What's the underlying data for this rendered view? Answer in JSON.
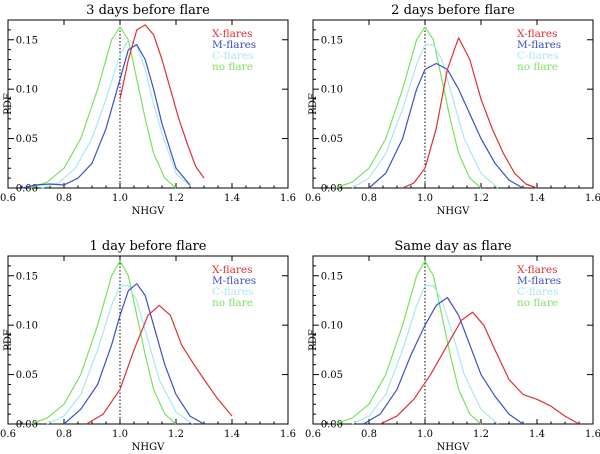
{
  "colors": {
    "X-flares": "#e03030",
    "M-flares": "#3a50c8",
    "C-flares": "#a8e8ef",
    "no flare": "#7ce060"
  },
  "chart_data": [
    {
      "type": "line",
      "title": "3 days before flare",
      "xlabel": "NHGV",
      "ylabel": "PDF",
      "xlim": [
        0.6,
        1.6
      ],
      "ylim": [
        0,
        0.17
      ],
      "xticks": [
        "0.6",
        "0.8",
        "1.0",
        "1.2",
        "1.4",
        "1.6"
      ],
      "yticks": [
        "0.00",
        "0.05",
        "0.10",
        "0.15"
      ],
      "vline": 1.0,
      "legend": [
        "X-flares",
        "M-flares",
        "C-flares",
        "no flare"
      ],
      "series": [
        {
          "name": "X-flares",
          "x": [
            1.0,
            1.03,
            1.06,
            1.09,
            1.12,
            1.15,
            1.18,
            1.21,
            1.24,
            1.27,
            1.3
          ],
          "y": [
            0.09,
            0.13,
            0.16,
            0.165,
            0.155,
            0.13,
            0.1,
            0.07,
            0.045,
            0.022,
            0.01
          ]
        },
        {
          "name": "M-flares",
          "x": [
            0.65,
            0.7,
            0.75,
            0.8,
            0.85,
            0.9,
            0.95,
            1.0,
            1.03,
            1.06,
            1.09,
            1.12,
            1.15,
            1.2,
            1.25
          ],
          "y": [
            0.0,
            0.003,
            0.004,
            0.003,
            0.01,
            0.025,
            0.06,
            0.11,
            0.14,
            0.145,
            0.13,
            0.1,
            0.065,
            0.02,
            0.003
          ]
        },
        {
          "name": "C-flares",
          "x": [
            0.72,
            0.78,
            0.84,
            0.9,
            0.95,
            1.0,
            1.03,
            1.06,
            1.09,
            1.12,
            1.15,
            1.2,
            1.25
          ],
          "y": [
            0.0,
            0.005,
            0.02,
            0.05,
            0.09,
            0.135,
            0.15,
            0.145,
            0.12,
            0.085,
            0.055,
            0.015,
            0.002
          ]
        },
        {
          "name": "no flare",
          "x": [
            0.68,
            0.74,
            0.8,
            0.86,
            0.92,
            0.97,
            1.0,
            1.03,
            1.06,
            1.09,
            1.12,
            1.16,
            1.2
          ],
          "y": [
            0.0,
            0.006,
            0.02,
            0.05,
            0.1,
            0.15,
            0.163,
            0.15,
            0.11,
            0.07,
            0.035,
            0.01,
            0.0
          ]
        }
      ]
    },
    {
      "type": "line",
      "title": "2 days before flare",
      "xlabel": "NHGV",
      "ylabel": "PDF",
      "xlim": [
        0.6,
        1.6
      ],
      "ylim": [
        0,
        0.17
      ],
      "xticks": [
        "0.6",
        "0.8",
        "1.0",
        "1.2",
        "1.4",
        "1.6"
      ],
      "yticks": [
        "0.00",
        "0.05",
        "0.10",
        "0.15"
      ],
      "vline": 1.0,
      "legend": [
        "X-flares",
        "M-flares",
        "C-flares",
        "no flare"
      ],
      "series": [
        {
          "name": "X-flares",
          "x": [
            0.92,
            0.96,
            1.0,
            1.04,
            1.08,
            1.12,
            1.16,
            1.2,
            1.24,
            1.28,
            1.32,
            1.36,
            1.4
          ],
          "y": [
            0.0,
            0.005,
            0.02,
            0.06,
            0.12,
            0.152,
            0.13,
            0.09,
            0.06,
            0.035,
            0.015,
            0.004,
            0.0
          ]
        },
        {
          "name": "M-flares",
          "x": [
            0.8,
            0.86,
            0.92,
            0.97,
            1.0,
            1.04,
            1.08,
            1.12,
            1.16,
            1.2,
            1.25,
            1.3,
            1.35
          ],
          "y": [
            0.0,
            0.015,
            0.05,
            0.1,
            0.12,
            0.126,
            0.12,
            0.1,
            0.075,
            0.05,
            0.025,
            0.008,
            0.0
          ]
        },
        {
          "name": "C-flares",
          "x": [
            0.74,
            0.8,
            0.86,
            0.92,
            0.97,
            1.0,
            1.03,
            1.06,
            1.1,
            1.14,
            1.2,
            1.26
          ],
          "y": [
            0.0,
            0.01,
            0.035,
            0.08,
            0.125,
            0.145,
            0.145,
            0.13,
            0.09,
            0.05,
            0.015,
            0.0
          ]
        },
        {
          "name": "no flare",
          "x": [
            0.68,
            0.74,
            0.8,
            0.86,
            0.92,
            0.97,
            1.0,
            1.03,
            1.06,
            1.09,
            1.12,
            1.16,
            1.2
          ],
          "y": [
            0.0,
            0.006,
            0.02,
            0.05,
            0.1,
            0.15,
            0.163,
            0.15,
            0.11,
            0.07,
            0.035,
            0.01,
            0.0
          ]
        }
      ]
    },
    {
      "type": "line",
      "title": "1 day before flare",
      "xlabel": "NHGV",
      "ylabel": "PDF",
      "xlim": [
        0.6,
        1.6
      ],
      "ylim": [
        0,
        0.17
      ],
      "xticks": [
        "0.6",
        "0.8",
        "1.0",
        "1.2",
        "1.4",
        "1.6"
      ],
      "yticks": [
        "0.00",
        "0.05",
        "0.10",
        "0.15"
      ],
      "vline": 1.0,
      "legend": [
        "X-flares",
        "M-flares",
        "C-flares",
        "no flare"
      ],
      "series": [
        {
          "name": "X-flares",
          "x": [
            0.88,
            0.94,
            1.0,
            1.05,
            1.1,
            1.14,
            1.18,
            1.22,
            1.26,
            1.3,
            1.35,
            1.4
          ],
          "y": [
            0.0,
            0.01,
            0.035,
            0.075,
            0.11,
            0.12,
            0.11,
            0.08,
            0.062,
            0.045,
            0.025,
            0.008
          ]
        },
        {
          "name": "M-flares",
          "x": [
            0.8,
            0.86,
            0.92,
            0.97,
            1.0,
            1.03,
            1.06,
            1.09,
            1.12,
            1.16,
            1.2,
            1.25,
            1.3
          ],
          "y": [
            0.0,
            0.015,
            0.04,
            0.08,
            0.11,
            0.135,
            0.142,
            0.13,
            0.1,
            0.06,
            0.03,
            0.008,
            0.0
          ]
        },
        {
          "name": "C-flares",
          "x": [
            0.74,
            0.8,
            0.86,
            0.92,
            0.97,
            1.0,
            1.03,
            1.06,
            1.1,
            1.14,
            1.2,
            1.26
          ],
          "y": [
            0.0,
            0.008,
            0.03,
            0.075,
            0.12,
            0.14,
            0.14,
            0.125,
            0.085,
            0.045,
            0.012,
            0.0
          ]
        },
        {
          "name": "no flare",
          "x": [
            0.68,
            0.74,
            0.8,
            0.86,
            0.92,
            0.97,
            1.0,
            1.03,
            1.06,
            1.09,
            1.12,
            1.16,
            1.2
          ],
          "y": [
            0.0,
            0.006,
            0.02,
            0.05,
            0.1,
            0.15,
            0.165,
            0.15,
            0.11,
            0.07,
            0.035,
            0.01,
            0.0
          ]
        }
      ]
    },
    {
      "type": "line",
      "title": "Same day as flare",
      "xlabel": "NHGV",
      "ylabel": "PDF",
      "xlim": [
        0.6,
        1.6
      ],
      "ylim": [
        0,
        0.17
      ],
      "xticks": [
        "0.6",
        "0.8",
        "1.0",
        "1.2",
        "1.4",
        "1.6"
      ],
      "yticks": [
        "0.00",
        "0.05",
        "0.10",
        "0.15"
      ],
      "vline": 1.0,
      "legend": [
        "X-flares",
        "M-flares",
        "C-flares",
        "no flare"
      ],
      "series": [
        {
          "name": "X-flares",
          "x": [
            0.84,
            0.9,
            0.96,
            1.02,
            1.08,
            1.13,
            1.17,
            1.21,
            1.25,
            1.3,
            1.35,
            1.4,
            1.45,
            1.5,
            1.55
          ],
          "y": [
            0.0,
            0.008,
            0.025,
            0.05,
            0.08,
            0.105,
            0.113,
            0.1,
            0.075,
            0.045,
            0.03,
            0.025,
            0.018,
            0.008,
            0.0
          ]
        },
        {
          "name": "M-flares",
          "x": [
            0.78,
            0.84,
            0.9,
            0.95,
            1.0,
            1.04,
            1.08,
            1.12,
            1.16,
            1.2,
            1.25,
            1.3,
            1.35
          ],
          "y": [
            0.0,
            0.01,
            0.035,
            0.07,
            0.1,
            0.12,
            0.128,
            0.11,
            0.08,
            0.05,
            0.028,
            0.01,
            0.0
          ]
        },
        {
          "name": "C-flares",
          "x": [
            0.74,
            0.8,
            0.86,
            0.92,
            0.97,
            1.0,
            1.03,
            1.06,
            1.1,
            1.14,
            1.2,
            1.26
          ],
          "y": [
            0.0,
            0.008,
            0.03,
            0.075,
            0.12,
            0.14,
            0.14,
            0.125,
            0.09,
            0.05,
            0.015,
            0.0
          ]
        },
        {
          "name": "no flare",
          "x": [
            0.68,
            0.74,
            0.8,
            0.86,
            0.92,
            0.97,
            1.0,
            1.03,
            1.06,
            1.09,
            1.12,
            1.16,
            1.2
          ],
          "y": [
            0.0,
            0.006,
            0.02,
            0.05,
            0.1,
            0.15,
            0.165,
            0.15,
            0.11,
            0.07,
            0.035,
            0.01,
            0.0
          ]
        }
      ]
    }
  ]
}
